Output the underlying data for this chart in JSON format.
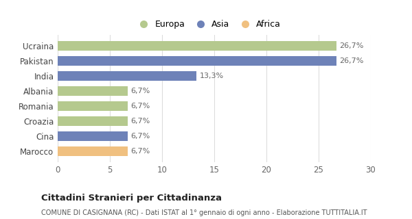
{
  "categories": [
    "Ucraina",
    "Pakistan",
    "India",
    "Albania",
    "Romania",
    "Croazia",
    "Cina",
    "Marocco"
  ],
  "values": [
    26.7,
    26.7,
    13.3,
    6.7,
    6.7,
    6.7,
    6.7,
    6.7
  ],
  "labels": [
    "26,7%",
    "26,7%",
    "13,3%",
    "6,7%",
    "6,7%",
    "6,7%",
    "6,7%",
    "6,7%"
  ],
  "colors": [
    "#b5c98e",
    "#6e82b8",
    "#6e82b8",
    "#b5c98e",
    "#b5c98e",
    "#b5c98e",
    "#6e82b8",
    "#f0c080"
  ],
  "legend_labels": [
    "Europa",
    "Asia",
    "Africa"
  ],
  "legend_colors": [
    "#b5c98e",
    "#6e82b8",
    "#f0c080"
  ],
  "xlim": [
    0,
    30
  ],
  "xticks": [
    0,
    5,
    10,
    15,
    20,
    25,
    30
  ],
  "title_main": "Cittadini Stranieri per Cittadinanza",
  "title_sub": "COMUNE DI CASIGNANA (RC) - Dati ISTAT al 1° gennaio di ogni anno - Elaborazione TUTTITALIA.IT",
  "bg_color": "#ffffff",
  "grid_color": "#dddddd",
  "bar_height": 0.65,
  "label_fontsize": 8,
  "tick_fontsize": 8.5,
  "label_color": "#666666"
}
